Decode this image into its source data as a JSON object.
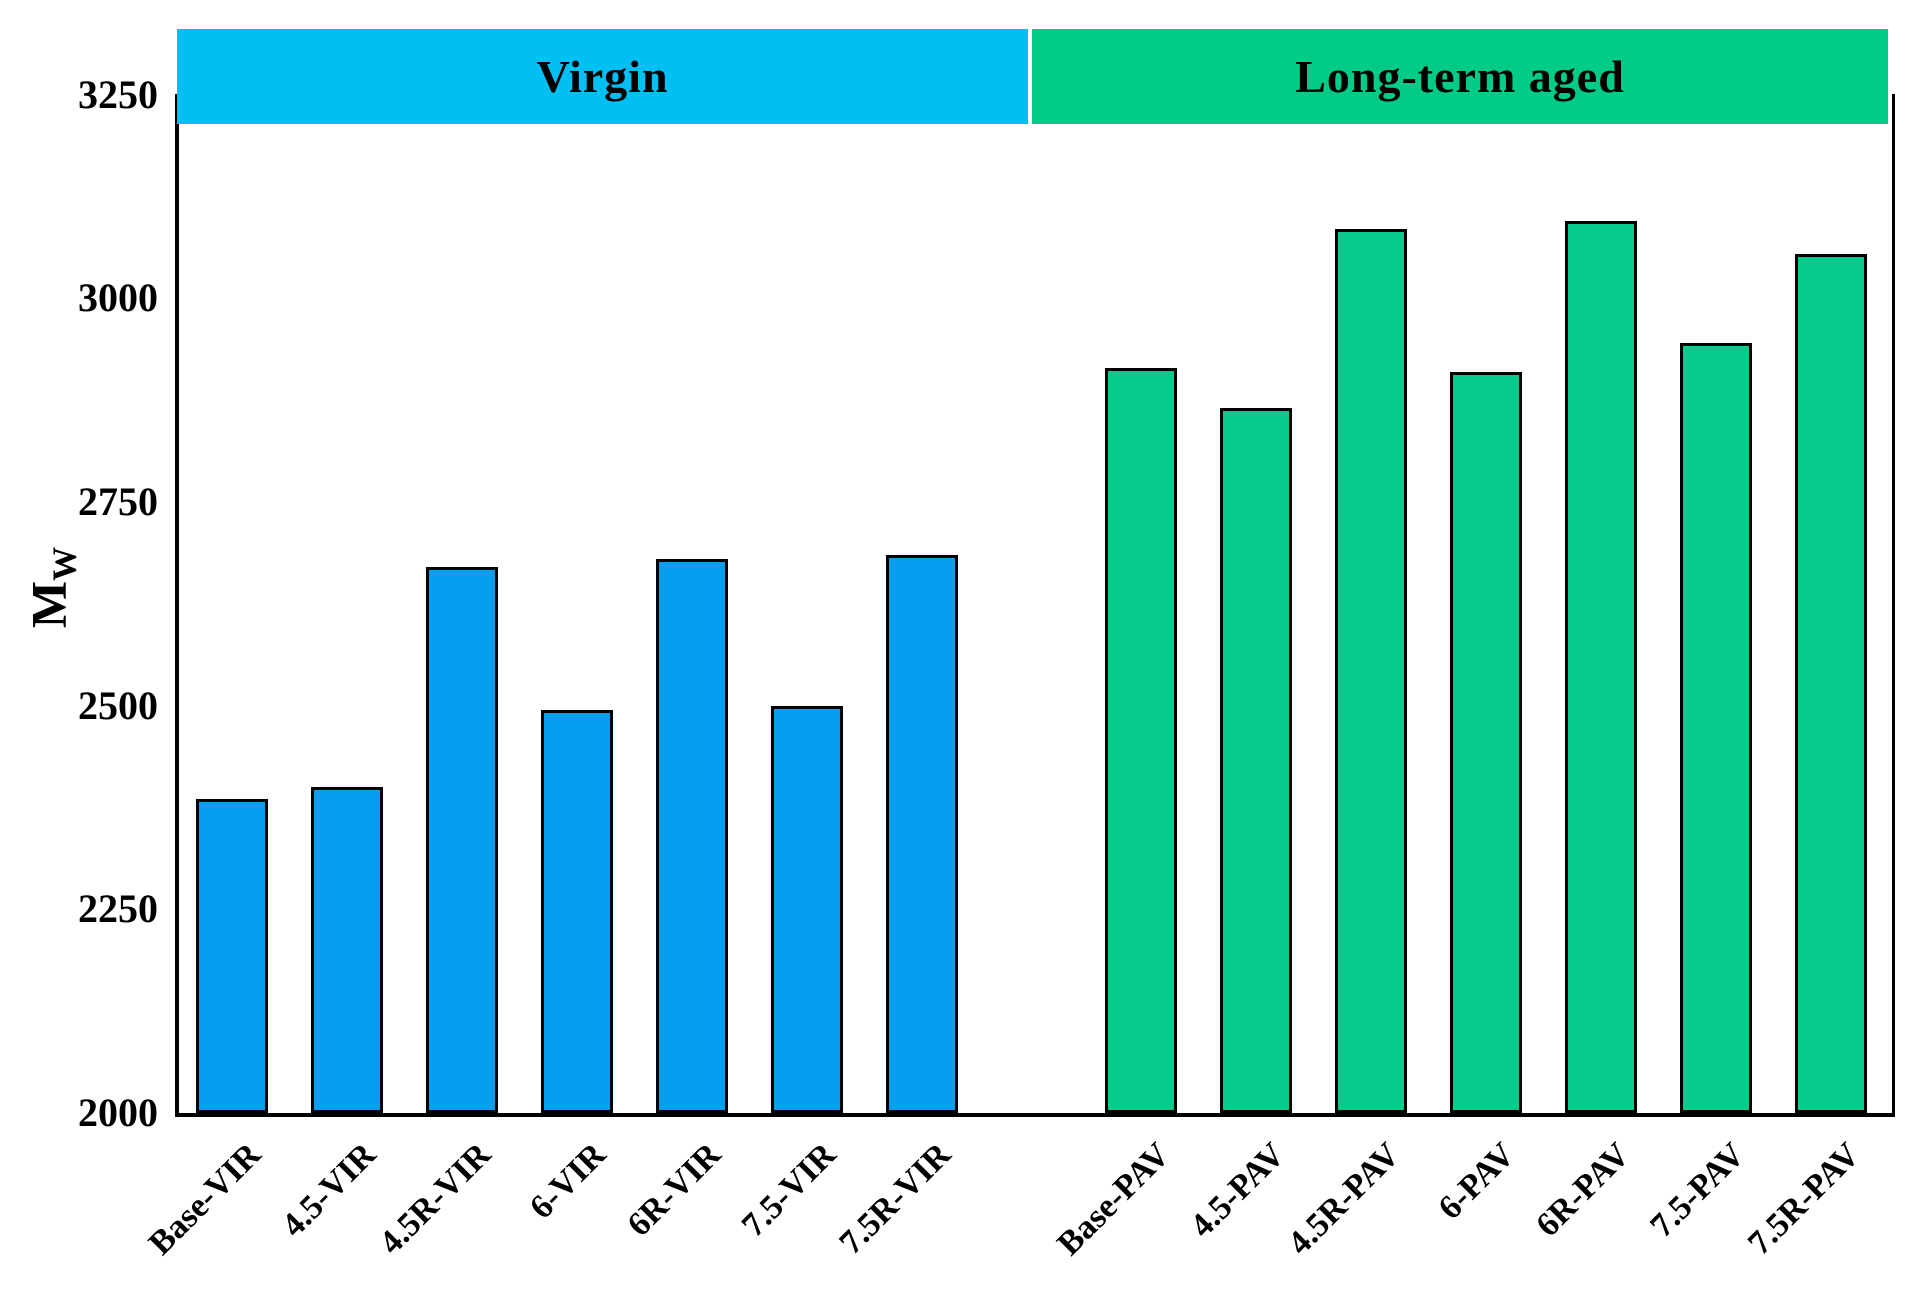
{
  "chart_data": {
    "type": "bar",
    "title": "",
    "ylabel_main": "M",
    "ylabel_sub": "W",
    "yticks": [
      2000,
      2250,
      2500,
      2750,
      3000,
      3250
    ],
    "ylim": [
      2000,
      3251
    ],
    "grid": false,
    "legend_position": "header-bands",
    "groups": [
      {
        "label": "Virgin",
        "band_color": "#00BFF3",
        "bar_color": "#089EF0",
        "categories": [
          "Base-VIR",
          "4.5-VIR",
          "4.5R-VIR",
          "6-VIR",
          "6R-VIR",
          "7.5-VIR",
          "7.5R-VIR"
        ],
        "values": [
          2385,
          2400,
          2670,
          2495,
          2680,
          2500,
          2685
        ]
      },
      {
        "label": "Long-term aged",
        "band_color": "#00CC85",
        "bar_color": "#06CB8C",
        "categories": [
          "Base-PAV",
          "4.5-PAV",
          "4.5R-PAV",
          "6-PAV",
          "6R-PAV",
          "7.5-PAV",
          "7.5R-PAV"
        ],
        "values": [
          2915,
          2865,
          3085,
          2910,
          3095,
          2945,
          3055
        ]
      }
    ]
  }
}
